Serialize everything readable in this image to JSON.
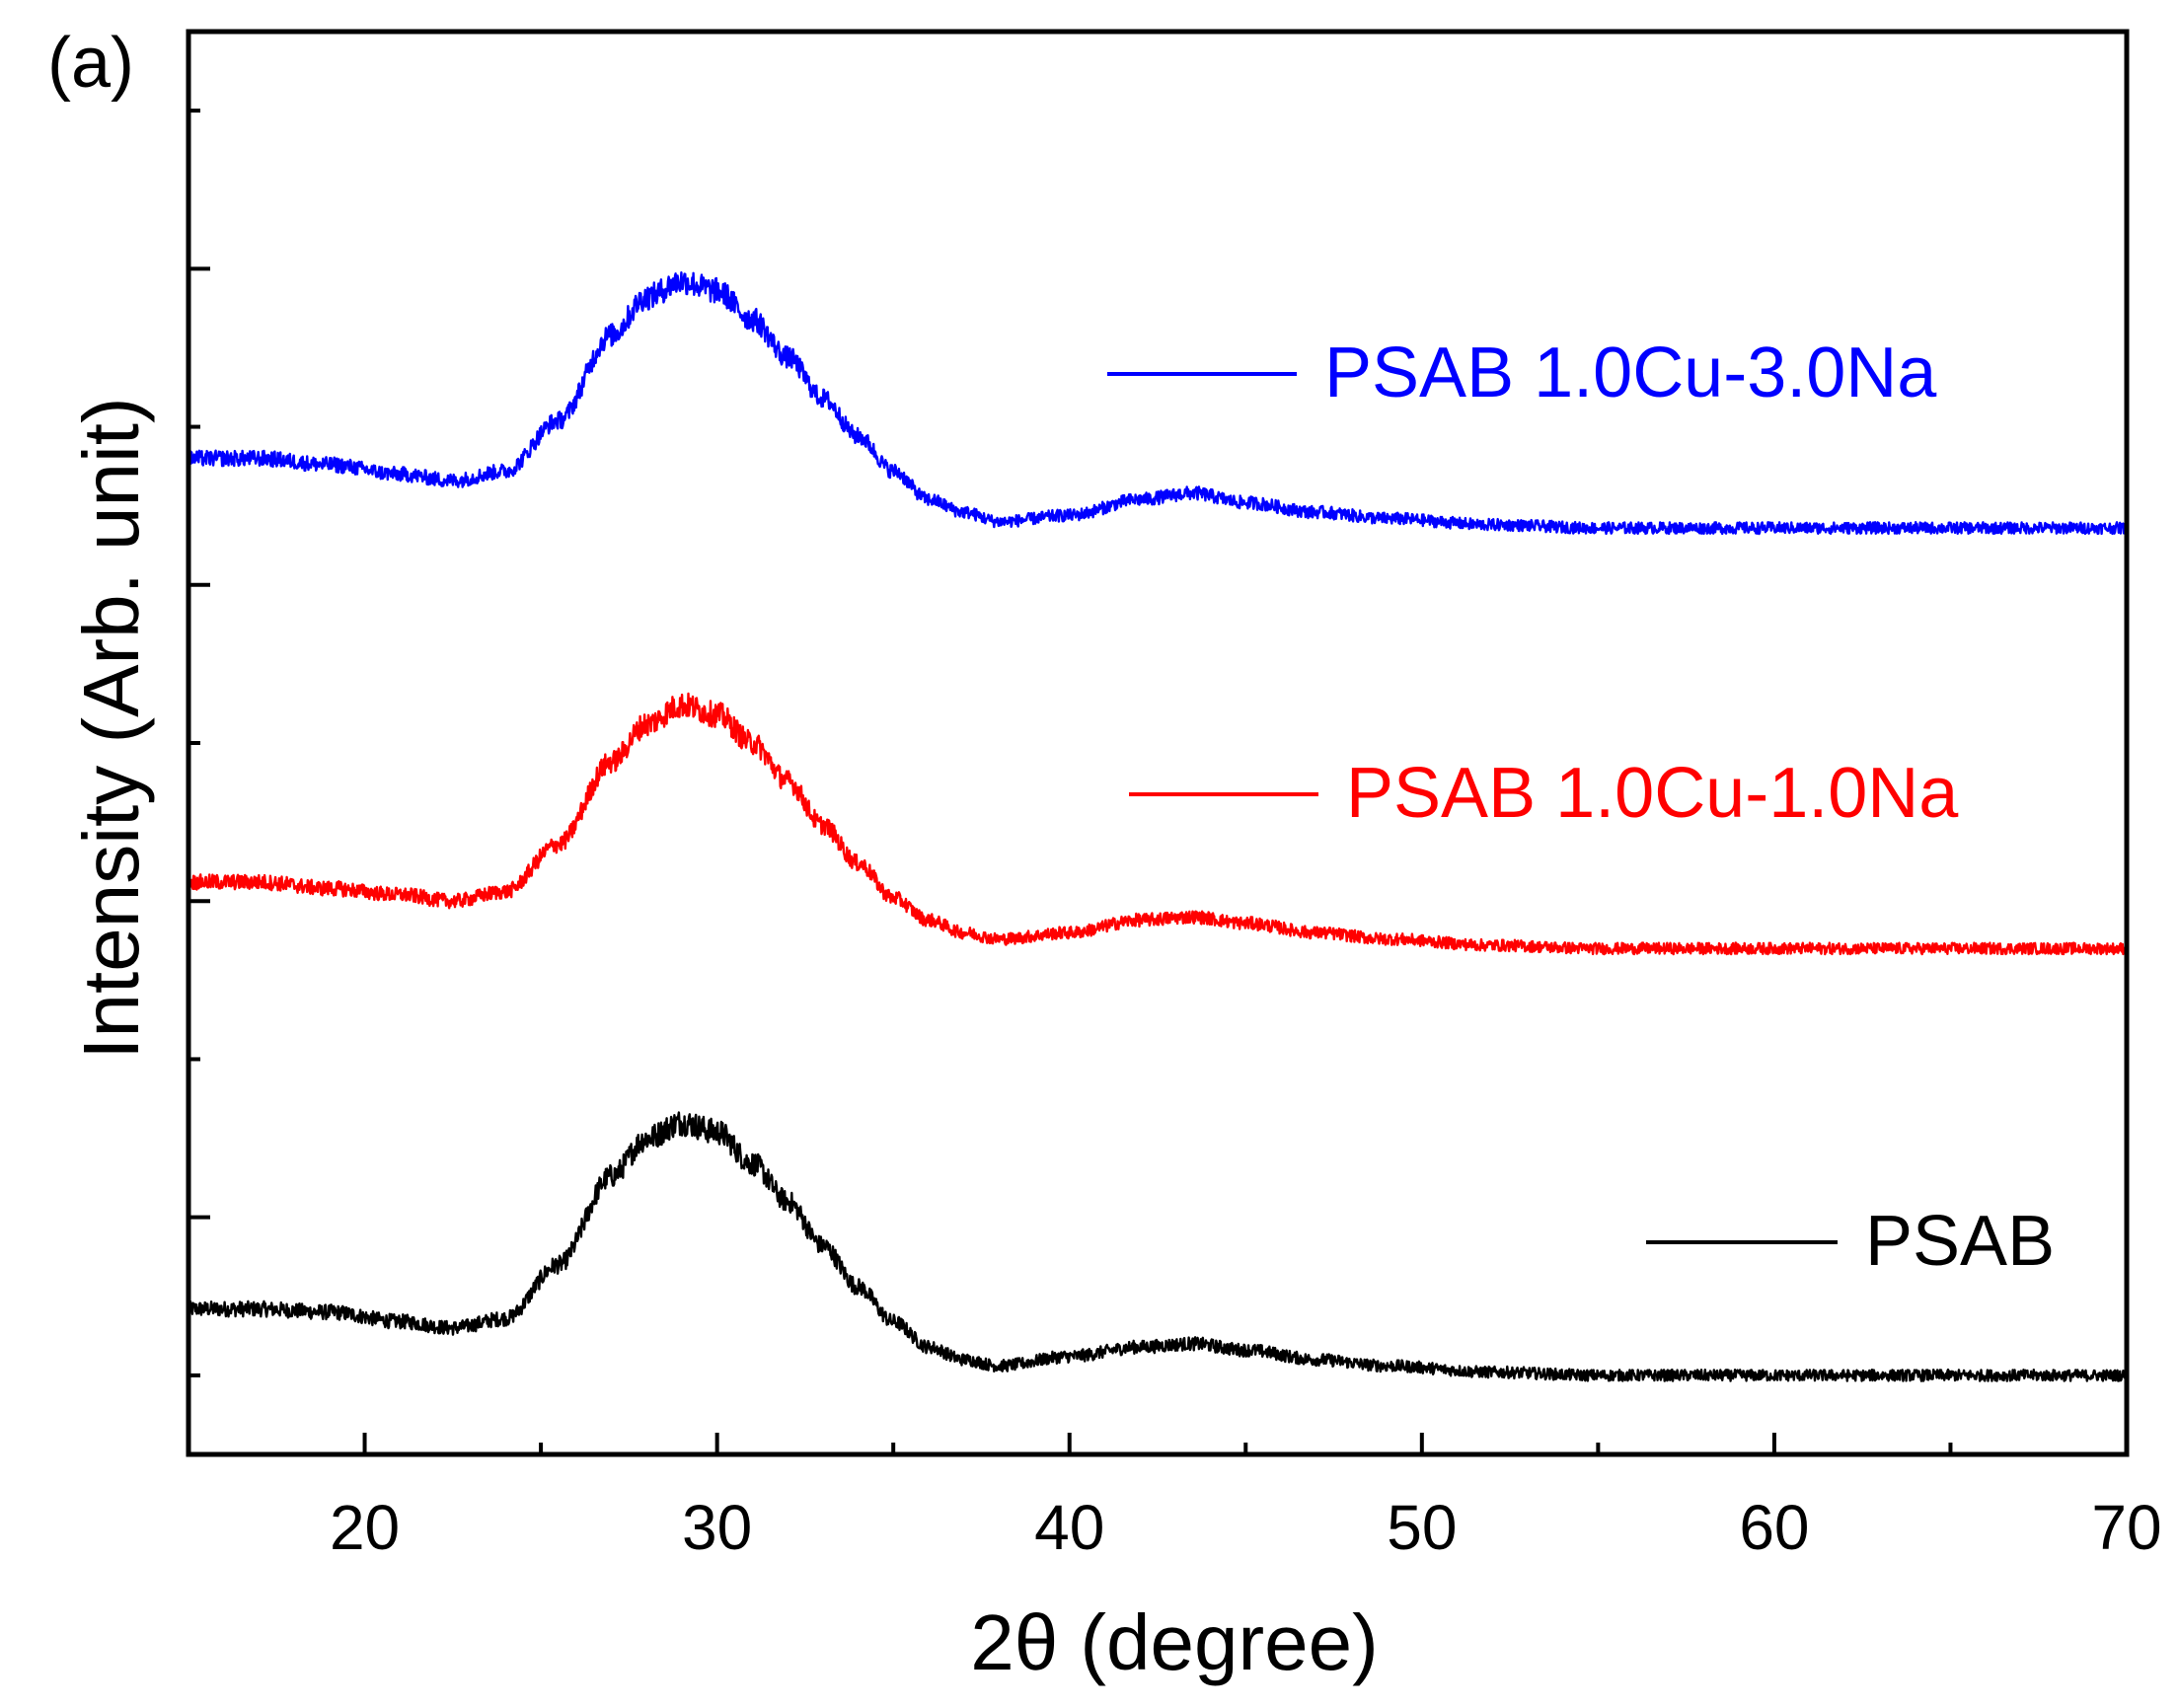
{
  "panel_label": "(a)",
  "chart_data": {
    "type": "line",
    "title": "",
    "xlabel": "2θ (degree)",
    "ylabel": "Intensity (Arb. unit)",
    "xlim": [
      15,
      70
    ],
    "ylim": [
      0,
      4.5
    ],
    "x_ticks": [
      "20",
      "30",
      "40",
      "50",
      "60",
      "70"
    ],
    "x_tick_values": [
      20,
      30,
      40,
      50,
      60,
      70
    ],
    "x_minor_tick_values": [
      25,
      35,
      45,
      55,
      65
    ],
    "y_tick_values": [
      0.25,
      0.75,
      1.25,
      1.75,
      2.25,
      2.75,
      3.25,
      3.75,
      4.25
    ],
    "grid": false,
    "legend": "inline labels to the right of each trace",
    "series": [
      {
        "name": "PSAB",
        "color": "#000000",
        "offset": 0.0,
        "points": [
          [
            15,
            0.46
          ],
          [
            17,
            0.46
          ],
          [
            19,
            0.45
          ],
          [
            21,
            0.42
          ],
          [
            22.5,
            0.4
          ],
          [
            24,
            0.43
          ],
          [
            25.5,
            0.6
          ],
          [
            27,
            0.88
          ],
          [
            28,
            1.0
          ],
          [
            29,
            1.05
          ],
          [
            30,
            1.02
          ],
          [
            31,
            0.92
          ],
          [
            32,
            0.8
          ],
          [
            33,
            0.66
          ],
          [
            34,
            0.53
          ],
          [
            35,
            0.42
          ],
          [
            36,
            0.34
          ],
          [
            37,
            0.3
          ],
          [
            38,
            0.28
          ],
          [
            40,
            0.31
          ],
          [
            42,
            0.34
          ],
          [
            43.5,
            0.35
          ],
          [
            45,
            0.33
          ],
          [
            47,
            0.3
          ],
          [
            49,
            0.28
          ],
          [
            52,
            0.26
          ],
          [
            55,
            0.25
          ],
          [
            60,
            0.25
          ],
          [
            65,
            0.25
          ],
          [
            70,
            0.25
          ]
        ]
      },
      {
        "name": "PSAB 1.0Cu-1.0Na",
        "color": "#ff0000",
        "offset": 1.35,
        "points": [
          [
            15,
            0.46
          ],
          [
            17,
            0.46
          ],
          [
            19,
            0.44
          ],
          [
            21,
            0.42
          ],
          [
            22.5,
            0.4
          ],
          [
            24,
            0.43
          ],
          [
            25.5,
            0.58
          ],
          [
            27,
            0.84
          ],
          [
            28,
            0.96
          ],
          [
            29,
            1.02
          ],
          [
            30,
            0.99
          ],
          [
            31,
            0.9
          ],
          [
            32,
            0.78
          ],
          [
            33,
            0.64
          ],
          [
            34,
            0.52
          ],
          [
            35,
            0.41
          ],
          [
            36,
            0.34
          ],
          [
            37,
            0.3
          ],
          [
            38,
            0.28
          ],
          [
            40,
            0.3
          ],
          [
            42,
            0.34
          ],
          [
            43.5,
            0.35
          ],
          [
            45,
            0.33
          ],
          [
            47,
            0.3
          ],
          [
            49,
            0.28
          ],
          [
            52,
            0.26
          ],
          [
            55,
            0.25
          ],
          [
            60,
            0.25
          ],
          [
            65,
            0.25
          ],
          [
            70,
            0.25
          ]
        ]
      },
      {
        "name": "PSAB 1.0Cu-3.0Na",
        "color": "#0000ff",
        "offset": 2.67,
        "points": [
          [
            15,
            0.48
          ],
          [
            17,
            0.48
          ],
          [
            19,
            0.46
          ],
          [
            21,
            0.43
          ],
          [
            22.5,
            0.41
          ],
          [
            24,
            0.44
          ],
          [
            25.5,
            0.6
          ],
          [
            27,
            0.87
          ],
          [
            28,
            0.99
          ],
          [
            29,
            1.04
          ],
          [
            30,
            1.01
          ],
          [
            31,
            0.92
          ],
          [
            32,
            0.8
          ],
          [
            33,
            0.67
          ],
          [
            34,
            0.55
          ],
          [
            35,
            0.44
          ],
          [
            36,
            0.35
          ],
          [
            37,
            0.31
          ],
          [
            38,
            0.28
          ],
          [
            40,
            0.3
          ],
          [
            42,
            0.35
          ],
          [
            43.5,
            0.37
          ],
          [
            45,
            0.34
          ],
          [
            47,
            0.31
          ],
          [
            49,
            0.29
          ],
          [
            52,
            0.27
          ],
          [
            55,
            0.26
          ],
          [
            60,
            0.26
          ],
          [
            65,
            0.26
          ],
          [
            70,
            0.26
          ]
        ]
      }
    ]
  }
}
